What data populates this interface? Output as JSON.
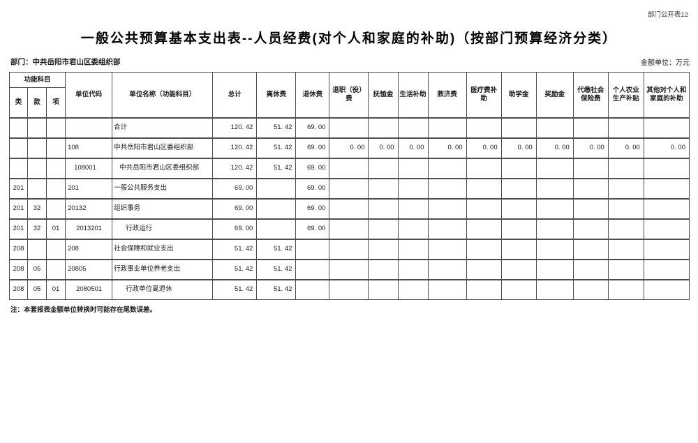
{
  "page": {
    "doc_label": "部门公开表12",
    "title": "一般公共预算基本支出表--人员经费(对个人和家庭的补助)（按部门预算经济分类）",
    "department_label": "部门：中共岳阳市君山区委组织部",
    "unit_label": "金额单位：万元",
    "note": "注：本套报表金额单位转换时可能存在尾数误差。"
  },
  "colors": {
    "border": "#4d4d4d",
    "text": "#1a1a1a",
    "background": "#ffffff"
  },
  "table": {
    "header": {
      "func_group": "功能科目",
      "func_cols": [
        "类",
        "款",
        "项"
      ],
      "columns": [
        "单位代码",
        "单位名称（功能科目）",
        "总计",
        "离休费",
        "退休费",
        "退职（役）费",
        "抚恤金",
        "生活补助",
        "救济费",
        "医疗费补助",
        "助学金",
        "奖励金",
        "代缴社会保险费",
        "个人农业生产补贴",
        "其他对个人和家庭的补助"
      ]
    },
    "rows": [
      {
        "lei": "",
        "kuan": "",
        "xiang": "",
        "code": "",
        "level": 0,
        "name": "合计",
        "values": [
          "120. 42",
          "51. 42",
          "69. 00",
          "",
          "",
          "",
          "",
          "",
          "",
          "",
          "",
          "",
          ""
        ]
      },
      {
        "lei": "",
        "kuan": "",
        "xiang": "",
        "code": "108",
        "level": 0,
        "name": "中共岳阳市君山区委组织部",
        "values": [
          "120. 42",
          "51. 42",
          "69. 00",
          "0. 00",
          "0. 00",
          "0. 00",
          "0. 00",
          "0. 00",
          "0. 00",
          "0. 00",
          "0. 00",
          "0. 00",
          "0. 00"
        ]
      },
      {
        "lei": "",
        "kuan": "",
        "xiang": "",
        "code": "108001",
        "level": 1,
        "name": "中共岳阳市君山区委组织部",
        "values": [
          "120. 42",
          "51. 42",
          "69. 00",
          "",
          "",
          "",
          "",
          "",
          "",
          "",
          "",
          "",
          ""
        ]
      },
      {
        "lei": "201",
        "kuan": "",
        "xiang": "",
        "code": "201",
        "level": 0,
        "name": "一般公共服务支出",
        "values": [
          "69. 00",
          "",
          "69. 00",
          "",
          "",
          "",
          "",
          "",
          "",
          "",
          "",
          "",
          ""
        ]
      },
      {
        "lei": "201",
        "kuan": "32",
        "xiang": "",
        "code": "20132",
        "level": 0,
        "name": "组织事务",
        "values": [
          "69. 00",
          "",
          "69. 00",
          "",
          "",
          "",
          "",
          "",
          "",
          "",
          "",
          "",
          ""
        ]
      },
      {
        "lei": "201",
        "kuan": "32",
        "xiang": "01",
        "code": "2013201",
        "level": 2,
        "name": "行政运行",
        "values": [
          "69. 00",
          "",
          "69. 00",
          "",
          "",
          "",
          "",
          "",
          "",
          "",
          "",
          "",
          ""
        ]
      },
      {
        "lei": "208",
        "kuan": "",
        "xiang": "",
        "code": "208",
        "level": 0,
        "name": "社会保障和就业支出",
        "values": [
          "51. 42",
          "51. 42",
          "",
          "",
          "",
          "",
          "",
          "",
          "",
          "",
          "",
          "",
          ""
        ]
      },
      {
        "lei": "208",
        "kuan": "05",
        "xiang": "",
        "code": "20805",
        "level": 0,
        "name": "行政事业单位养老支出",
        "values": [
          "51. 42",
          "51. 42",
          "",
          "",
          "",
          "",
          "",
          "",
          "",
          "",
          "",
          "",
          ""
        ]
      },
      {
        "lei": "208",
        "kuan": "05",
        "xiang": "01",
        "code": "2080501",
        "level": 2,
        "name": "行政单位离退休",
        "values": [
          "51. 42",
          "51. 42",
          "",
          "",
          "",
          "",
          "",
          "",
          "",
          "",
          "",
          "",
          ""
        ]
      }
    ]
  }
}
